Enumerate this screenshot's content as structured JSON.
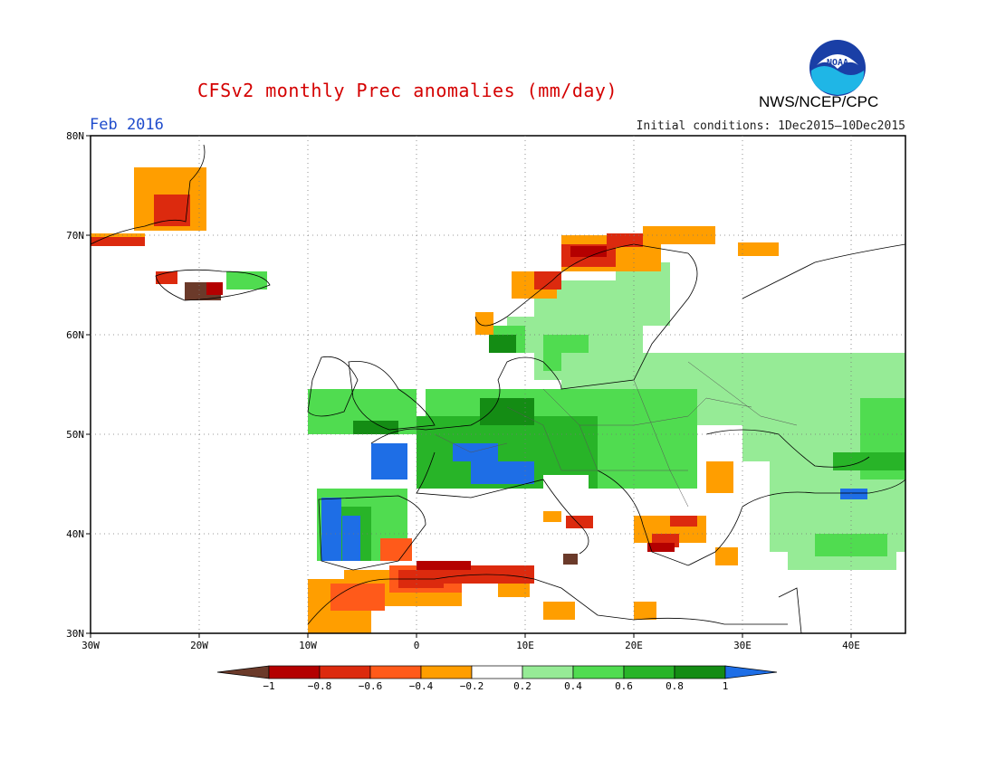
{
  "title": "CFSv2 monthly Prec anomalies (mm/day)",
  "agency": "NWS/NCEP/CPC",
  "logo_text": "NOAA",
  "period": "Feb 2016",
  "initial_conditions": "Initial conditions: 1Dec2015–10Dec2015",
  "map": {
    "lat_labels": [
      "80N",
      "70N",
      "60N",
      "50N",
      "40N",
      "30N"
    ],
    "lon_labels": [
      "30W",
      "20W",
      "10W",
      "0",
      "10E",
      "20E",
      "30E",
      "40E"
    ],
    "lon_range": [
      -30,
      45
    ],
    "lat_range": [
      30,
      80
    ]
  },
  "colorbar": {
    "labels": [
      "−1",
      "−0.8",
      "−0.6",
      "−0.4",
      "−0.2",
      "0.2",
      "0.4",
      "0.6",
      "0.8",
      "1"
    ],
    "colors": [
      "#6b3a2a",
      "#b40000",
      "#dc2a0e",
      "#ff5a1a",
      "#ff9e00",
      "#ffffff",
      "#96eb96",
      "#50dc50",
      "#28b428",
      "#148c14",
      "#1e6ee6"
    ]
  },
  "anomaly_regions": [
    {
      "name": "iberia-west",
      "color": "#1e6ee6"
    },
    {
      "name": "france",
      "color": "#1e6ee6"
    },
    {
      "name": "central-europe",
      "color": "#50dc50"
    },
    {
      "name": "north-africa",
      "color": "#ff5a1a"
    },
    {
      "name": "norway-coast",
      "color": "#dc2a0e"
    }
  ]
}
